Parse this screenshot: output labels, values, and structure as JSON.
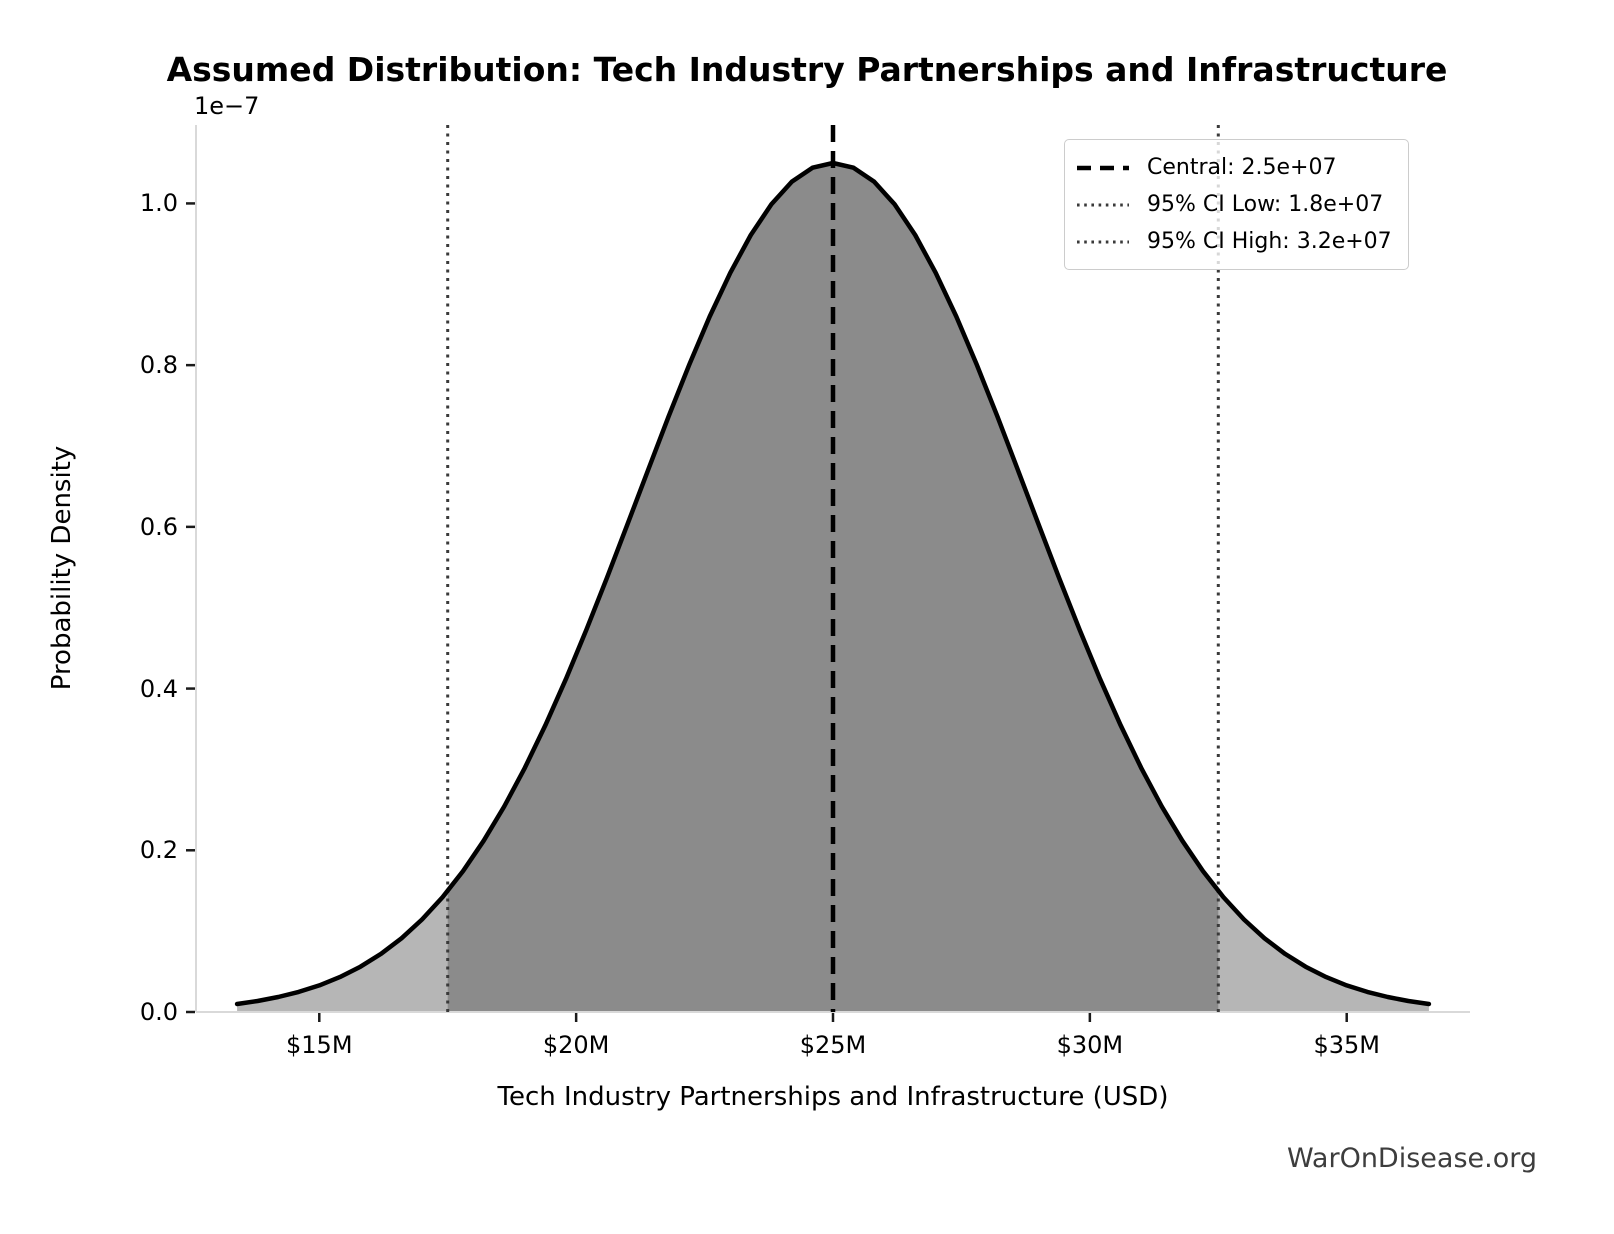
{
  "title": "Assumed Distribution: Tech Industry Partnerships and Infrastructure",
  "watermark": "WarOnDisease.org",
  "axes": {
    "offset_label": "1e−7",
    "xlabel": "Tech Industry Partnerships and Infrastructure (USD)",
    "ylabel": "Probability Density"
  },
  "legend": {
    "entries": [
      {
        "label": "Central: 2.5e+07",
        "line_style": "dashed",
        "color": "#000000"
      },
      {
        "label": "95% CI Low: 1.8e+07",
        "line_style": "dotted",
        "color": "#3a3a3a"
      },
      {
        "label": "95% CI High: 3.2e+07",
        "line_style": "dotted",
        "color": "#3a3a3a"
      }
    ]
  },
  "chart_data": {
    "type": "area",
    "title": "Assumed Distribution: Tech Industry Partnerships and Infrastructure",
    "xlabel": "Tech Industry Partnerships and Infrastructure (USD)",
    "ylabel": "Probability Density",
    "y_offset_factor": "1e-7",
    "distribution": "normal",
    "central_usd": 25000000,
    "ci_low_label_usd": "1.8e+07",
    "ci_high_label_usd": "3.2e+07",
    "central_line_musd": 25.0,
    "ci_low_line_musd": 17.5,
    "ci_high_line_musd": 32.5,
    "mean_musd": 25.0,
    "std_musd": 3.8,
    "xlim_musd": [
      12.6,
      37.4
    ],
    "ylim_1e7": [
      0,
      1.097
    ],
    "grid": false,
    "legend_position": "upper right",
    "x_ticks": [
      {
        "musd": 15,
        "label": "$15M"
      },
      {
        "musd": 20,
        "label": "$20M"
      },
      {
        "musd": 25,
        "label": "$25M"
      },
      {
        "musd": 30,
        "label": "$30M"
      },
      {
        "musd": 35,
        "label": "$35M"
      }
    ],
    "y_ticks": [
      {
        "value": 0.0,
        "label": "0.0"
      },
      {
        "value": 0.2,
        "label": "0.2"
      },
      {
        "value": 0.4,
        "label": "0.4"
      },
      {
        "value": 0.6,
        "label": "0.6"
      },
      {
        "value": 0.8,
        "label": "0.8"
      },
      {
        "value": 1.0,
        "label": "1.0"
      }
    ],
    "curve_x_musd": [
      13.4,
      13.8,
      14.2,
      14.6,
      15.0,
      15.4,
      15.8,
      16.2,
      16.6,
      17.0,
      17.4,
      17.8,
      18.2,
      18.6,
      19.0,
      19.4,
      19.8,
      20.2,
      20.6,
      21.0,
      21.4,
      21.8,
      22.2,
      22.6,
      23.0,
      23.4,
      23.8,
      24.2,
      24.6,
      25.0,
      25.4,
      25.8,
      26.2,
      26.6,
      27.0,
      27.4,
      27.8,
      28.2,
      28.6,
      29.0,
      29.4,
      29.8,
      30.2,
      30.6,
      31.0,
      31.4,
      31.8,
      32.2,
      32.6,
      33.0,
      33.4,
      33.8,
      34.2,
      34.6,
      35.0,
      35.4,
      35.8,
      36.2,
      36.6
    ],
    "curve_density_1e7": [
      0.0099,
      0.0136,
      0.0185,
      0.0248,
      0.0329,
      0.0432,
      0.056,
      0.0719,
      0.0911,
      0.1144,
      0.1421,
      0.1744,
      0.2118,
      0.2542,
      0.3019,
      0.3545,
      0.4117,
      0.4728,
      0.5371,
      0.6033,
      0.6703,
      0.7366,
      0.8004,
      0.8601,
      0.9142,
      0.9609,
      0.9989,
      1.027,
      1.0442,
      1.05,
      1.0442,
      1.027,
      0.9989,
      0.9609,
      0.9142,
      0.8601,
      0.8004,
      0.7366,
      0.6703,
      0.6033,
      0.5371,
      0.4728,
      0.4117,
      0.3545,
      0.3019,
      0.2542,
      0.2118,
      0.1744,
      0.1421,
      0.1144,
      0.0911,
      0.0719,
      0.056,
      0.0432,
      0.0329,
      0.0248,
      0.0185,
      0.0136,
      0.0099
    ],
    "colors": {
      "curve": "#000000",
      "tail_fill": "#b6b6b6",
      "ci_fill": "#8b8b8b",
      "central_line": "#000000",
      "ci_line": "#3a3a3a",
      "spine": "#d9d9d9",
      "tick_mark": "#1a1a1a"
    }
  }
}
